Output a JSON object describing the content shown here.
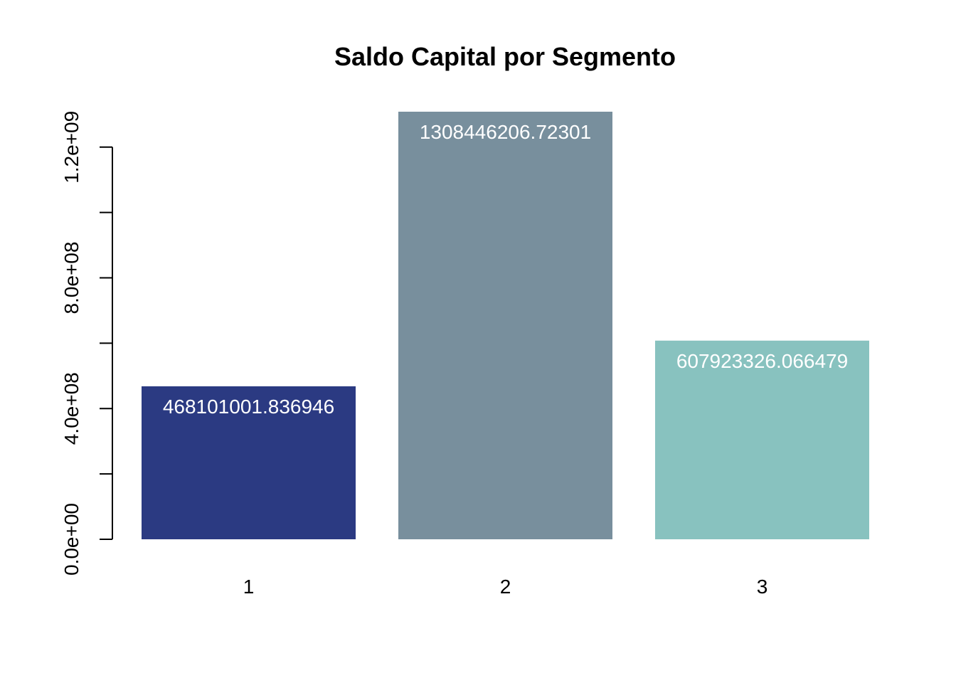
{
  "chart_data": {
    "type": "bar",
    "title": "Saldo Capital por Segmento",
    "xlabel": "",
    "ylabel": "",
    "categories": [
      "1",
      "2",
      "3"
    ],
    "values": [
      468101001.836946,
      1308446206.72301,
      607923326.066479
    ],
    "value_labels": [
      "468101001.836946",
      "1308446206.72301",
      "607923326.066479"
    ],
    "colors": [
      "#2b3a82",
      "#788f9d",
      "#88c2bf"
    ],
    "ylim": [
      0,
      1308446206.72301
    ],
    "y_ticks": [
      0,
      200000000,
      400000000,
      600000000,
      800000000,
      1000000000,
      1200000000
    ],
    "y_tick_labels": [
      "0.0e+00",
      "4.0e+08",
      "8.0e+08",
      "1.2e+09"
    ],
    "y_labeled_ticks": [
      0,
      400000000,
      800000000,
      1200000000
    ],
    "label_color": "#ffffff",
    "grid": false
  }
}
